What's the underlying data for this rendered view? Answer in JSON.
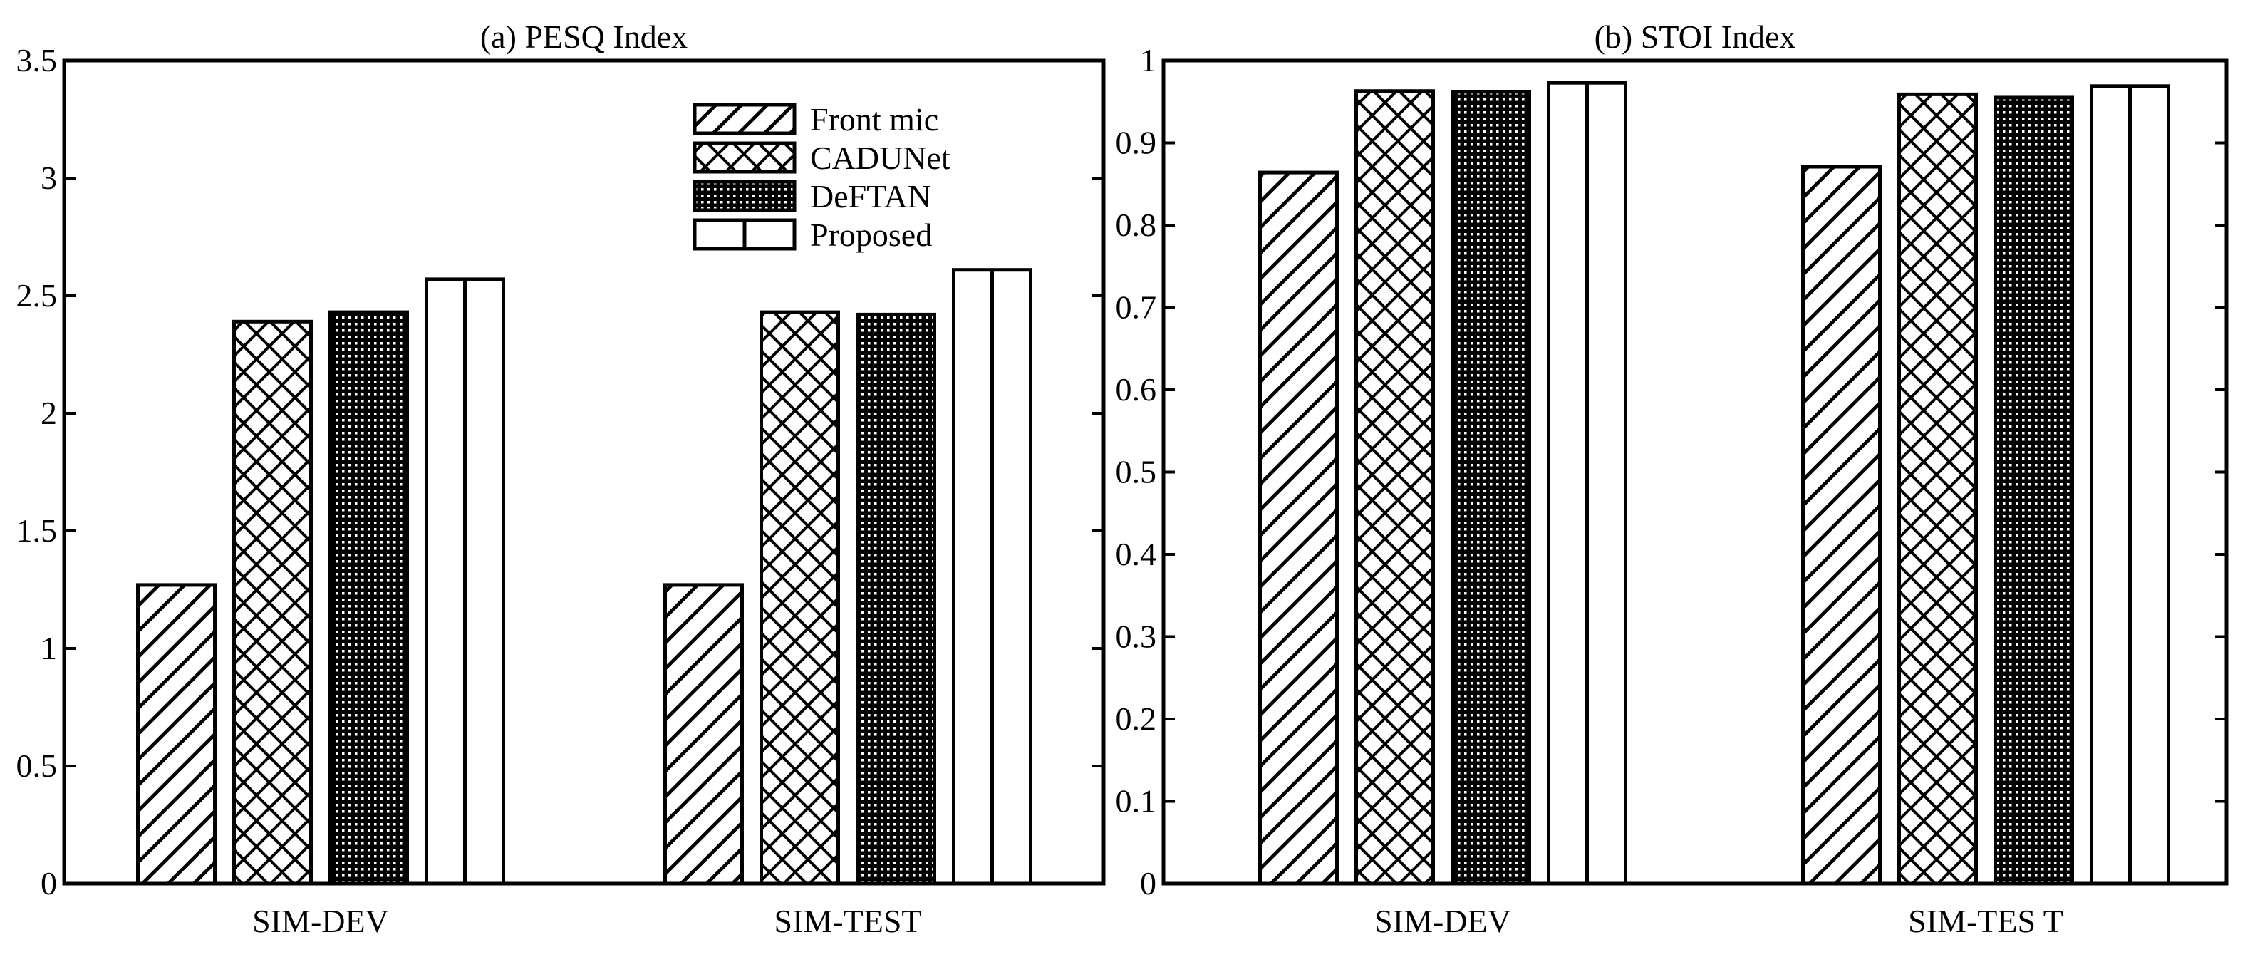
{
  "chart_data": [
    {
      "type": "bar",
      "title": "(a) PESQ Index",
      "xlabel": "",
      "ylabel": "",
      "categories": [
        "SIM-DEV",
        "SIM-TEST"
      ],
      "ylim": [
        0,
        3.5
      ],
      "yticks": [
        "0",
        "0.5",
        "1",
        "1.5",
        "2",
        "2.5",
        "3",
        "3.5"
      ],
      "legend_position": "top-right",
      "series": [
        {
          "name": "Front mic",
          "pattern": "diagonal-hatch",
          "values": [
            1.27,
            1.27
          ]
        },
        {
          "name": "CADUNet",
          "pattern": "crosshatch",
          "values": [
            2.39,
            2.43
          ]
        },
        {
          "name": "DeFTAN",
          "pattern": "dense-dots",
          "values": [
            2.43,
            2.42
          ]
        },
        {
          "name": "Proposed",
          "pattern": "vertical-lines",
          "values": [
            2.57,
            2.61
          ]
        }
      ]
    },
    {
      "type": "bar",
      "title": "(b) STOI Index",
      "xlabel": "",
      "ylabel": "",
      "categories": [
        "SIM-DEV",
        "SIM-TES T"
      ],
      "ylim": [
        0,
        1
      ],
      "yticks": [
        "0",
        "0.1",
        "0.2",
        "0.3",
        "0.4",
        "0.5",
        "0.6",
        "0.7",
        "0.8",
        "0.9",
        "1"
      ],
      "series": [
        {
          "name": "Front mic",
          "pattern": "diagonal-hatch",
          "values": [
            0.864,
            0.871
          ]
        },
        {
          "name": "CADUNet",
          "pattern": "crosshatch",
          "values": [
            0.963,
            0.959
          ]
        },
        {
          "name": "DeFTAN",
          "pattern": "dense-dots",
          "values": [
            0.962,
            0.955
          ]
        },
        {
          "name": "Proposed",
          "pattern": "vertical-lines",
          "values": [
            0.973,
            0.969
          ]
        }
      ]
    }
  ]
}
